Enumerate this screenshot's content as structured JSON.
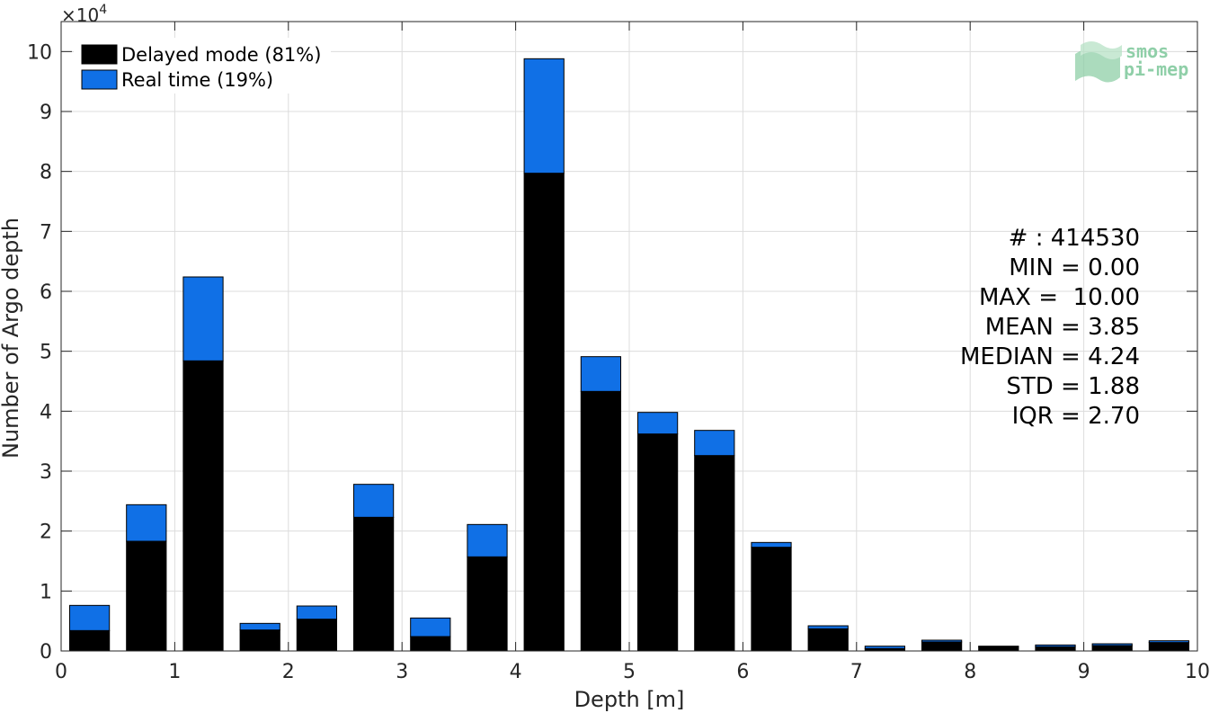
{
  "chart_data": {
    "type": "bar",
    "stacked": true,
    "x": [
      0.25,
      0.75,
      1.25,
      1.75,
      2.25,
      2.75,
      3.25,
      3.75,
      4.25,
      4.75,
      5.25,
      5.75,
      6.25,
      6.75,
      7.25,
      7.75,
      8.25,
      8.75,
      9.25,
      9.75
    ],
    "series": [
      {
        "name": "Delayed mode (81%)",
        "color": "#000000",
        "values": [
          3400,
          18300,
          48400,
          3500,
          5300,
          22300,
          2400,
          15700,
          79700,
          43300,
          36200,
          32600,
          17300,
          3700,
          400,
          1500,
          700,
          700,
          900,
          1400
        ]
      },
      {
        "name": "Real time (19%)",
        "color": "#1070e6",
        "values": [
          4200,
          6100,
          14000,
          1100,
          2200,
          5500,
          3100,
          5400,
          19100,
          5800,
          3600,
          4200,
          800,
          500,
          400,
          300,
          100,
          300,
          300,
          300
        ]
      }
    ],
    "xlabel": "Depth [m]",
    "ylabel": "Number of Argo depth",
    "xlim": [
      0,
      10
    ],
    "ylim": [
      0,
      105000
    ],
    "xticks": [
      0,
      1,
      2,
      3,
      4,
      5,
      6,
      7,
      8,
      9,
      10
    ],
    "yticks": [
      0,
      10000,
      20000,
      30000,
      40000,
      50000,
      60000,
      70000,
      80000,
      90000,
      100000
    ],
    "ytick_labels": [
      "0",
      "1",
      "2",
      "3",
      "4",
      "5",
      "6",
      "7",
      "8",
      "9",
      "10"
    ],
    "y_exponent_label": "×10",
    "y_exponent_power": "4",
    "grid": true,
    "legend_position": "top-left",
    "stats": [
      "# : 414530",
      "MIN = 0.00",
      "MAX =  10.00",
      "MEAN = 3.85",
      "MEDIAN = 4.24",
      "STD = 1.88",
      "IQR = 2.70"
    ],
    "logo": [
      "smos",
      "pi-mep"
    ]
  }
}
